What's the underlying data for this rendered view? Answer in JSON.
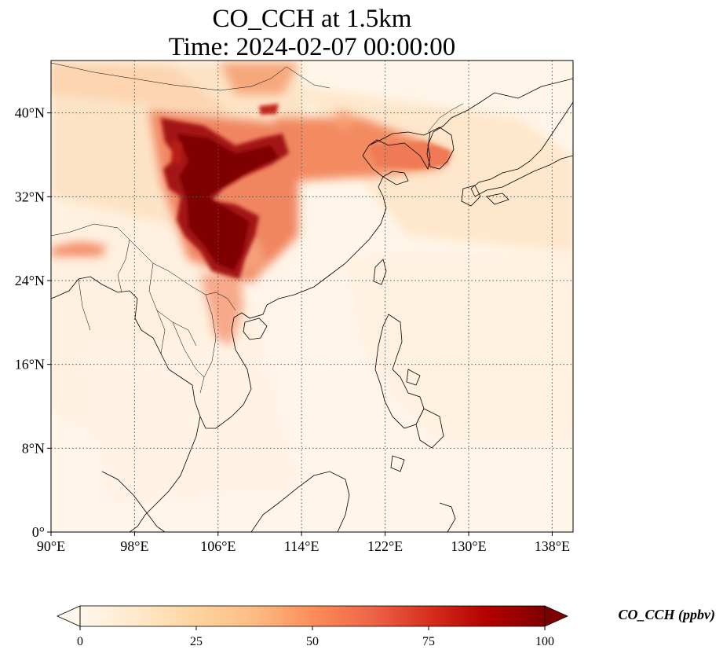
{
  "title_line1": "CO_CCH at 1.5km",
  "title_line2": "Time: 2024-02-07 00:00:00",
  "map": {
    "lon_range": [
      90,
      140
    ],
    "lat_range": [
      0,
      45
    ],
    "grid": "dotted",
    "x_ticks": [
      "90°E",
      "98°E",
      "106°E",
      "114°E",
      "122°E",
      "130°E",
      "138°E"
    ],
    "x_tick_values": [
      90,
      98,
      106,
      114,
      122,
      130,
      138
    ],
    "y_ticks": [
      "0°",
      "8°N",
      "16°N",
      "24°N",
      "32°N",
      "40°N"
    ],
    "y_tick_values": [
      0,
      8,
      16,
      24,
      32,
      40
    ],
    "colormap": "OrRd",
    "colors": {
      "low": "#fff7ec",
      "mid": "#fdbb84",
      "high": "#ef6548",
      "max": "#7f0000"
    }
  },
  "colorbar": {
    "label": "CO_CCH (ppbv)",
    "ticks": [
      "0",
      "25",
      "50",
      "75",
      "100"
    ],
    "tick_values": [
      0,
      25,
      50,
      75,
      100
    ],
    "range": [
      0,
      100
    ],
    "extend": "both"
  }
}
